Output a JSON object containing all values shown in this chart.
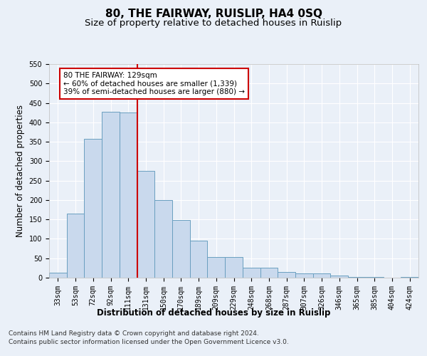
{
  "title": "80, THE FAIRWAY, RUISLIP, HA4 0SQ",
  "subtitle": "Size of property relative to detached houses in Ruislip",
  "xlabel": "Distribution of detached houses by size in Ruislip",
  "ylabel": "Number of detached properties",
  "categories": [
    "33sqm",
    "53sqm",
    "72sqm",
    "92sqm",
    "111sqm",
    "131sqm",
    "150sqm",
    "170sqm",
    "189sqm",
    "209sqm",
    "229sqm",
    "248sqm",
    "268sqm",
    "287sqm",
    "307sqm",
    "326sqm",
    "346sqm",
    "365sqm",
    "385sqm",
    "404sqm",
    "424sqm"
  ],
  "values": [
    13,
    165,
    357,
    428,
    425,
    275,
    200,
    148,
    96,
    54,
    54,
    25,
    25,
    14,
    11,
    11,
    5,
    2,
    1,
    0,
    1
  ],
  "bar_color": "#c9d9ed",
  "bar_edge_color": "#6a9fc0",
  "vline_x": 4.5,
  "marker_label_lines": [
    "80 THE FAIRWAY: 129sqm",
    "← 60% of detached houses are smaller (1,339)",
    "39% of semi-detached houses are larger (880) →"
  ],
  "annotation_box_color": "#ffffff",
  "annotation_border_color": "#cc0000",
  "vline_color": "#cc0000",
  "ylim": [
    0,
    550
  ],
  "yticks": [
    0,
    50,
    100,
    150,
    200,
    250,
    300,
    350,
    400,
    450,
    500,
    550
  ],
  "footer_lines": [
    "Contains HM Land Registry data © Crown copyright and database right 2024.",
    "Contains public sector information licensed under the Open Government Licence v3.0."
  ],
  "background_color": "#eaf0f8",
  "plot_background": "#eaf0f8",
  "grid_color": "#ffffff",
  "title_fontsize": 11,
  "subtitle_fontsize": 9.5,
  "axis_label_fontsize": 8.5,
  "tick_fontsize": 7,
  "footer_fontsize": 6.5
}
